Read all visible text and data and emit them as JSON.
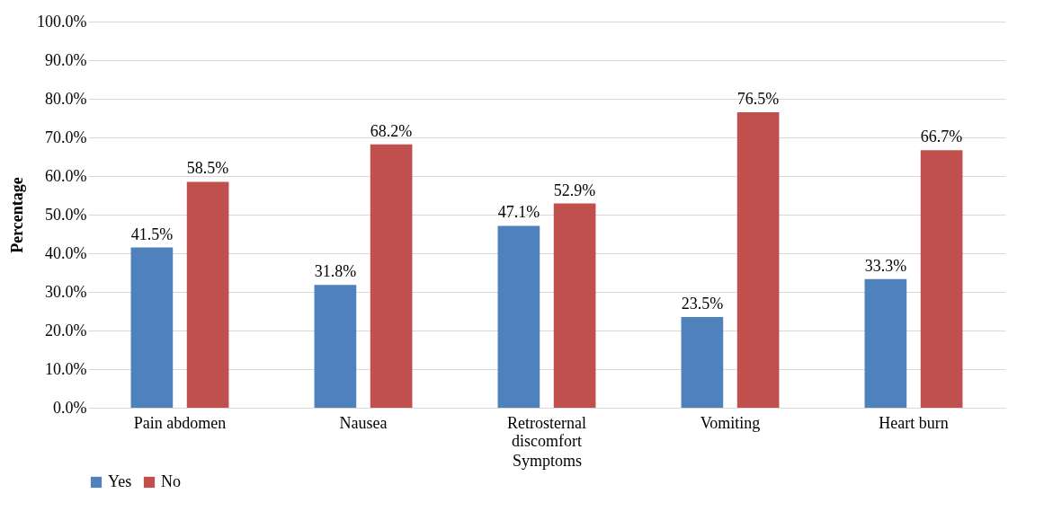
{
  "chart_data": {
    "type": "bar",
    "xlabel": "Symptoms",
    "ylabel": "Percentage",
    "categories": [
      "Pain abdomen",
      "Nausea",
      "Retrosternal discomfort",
      "Vomiting",
      "Heart burn"
    ],
    "series": [
      {
        "name": "Yes",
        "color": "#4f81bd",
        "values": [
          41.5,
          31.8,
          47.1,
          23.5,
          33.3
        ],
        "value_labels": [
          "41.5%",
          "31.8%",
          "47.1%",
          "23.5%",
          "33.3%"
        ]
      },
      {
        "name": "No",
        "color": "#c0504d",
        "values": [
          58.5,
          68.2,
          52.9,
          76.5,
          66.7
        ],
        "value_labels": [
          "58.5%",
          "68.2%",
          "52.9%",
          "76.5%",
          "66.7%"
        ]
      }
    ],
    "ylim": [
      0,
      100
    ],
    "yticks": [
      {
        "value": 0,
        "label": "0.0%"
      },
      {
        "value": 10,
        "label": "10.0%"
      },
      {
        "value": 20,
        "label": "20.0%"
      },
      {
        "value": 30,
        "label": "30.0%"
      },
      {
        "value": 40,
        "label": "40.0%"
      },
      {
        "value": 50,
        "label": "50.0%"
      },
      {
        "value": 60,
        "label": "60.0%"
      },
      {
        "value": 70,
        "label": "70.0%"
      },
      {
        "value": 80,
        "label": "80.0%"
      },
      {
        "value": 90,
        "label": "90.0%"
      },
      {
        "value": 100,
        "label": "100.0%"
      }
    ],
    "grid": "y",
    "legend": "bottom"
  }
}
